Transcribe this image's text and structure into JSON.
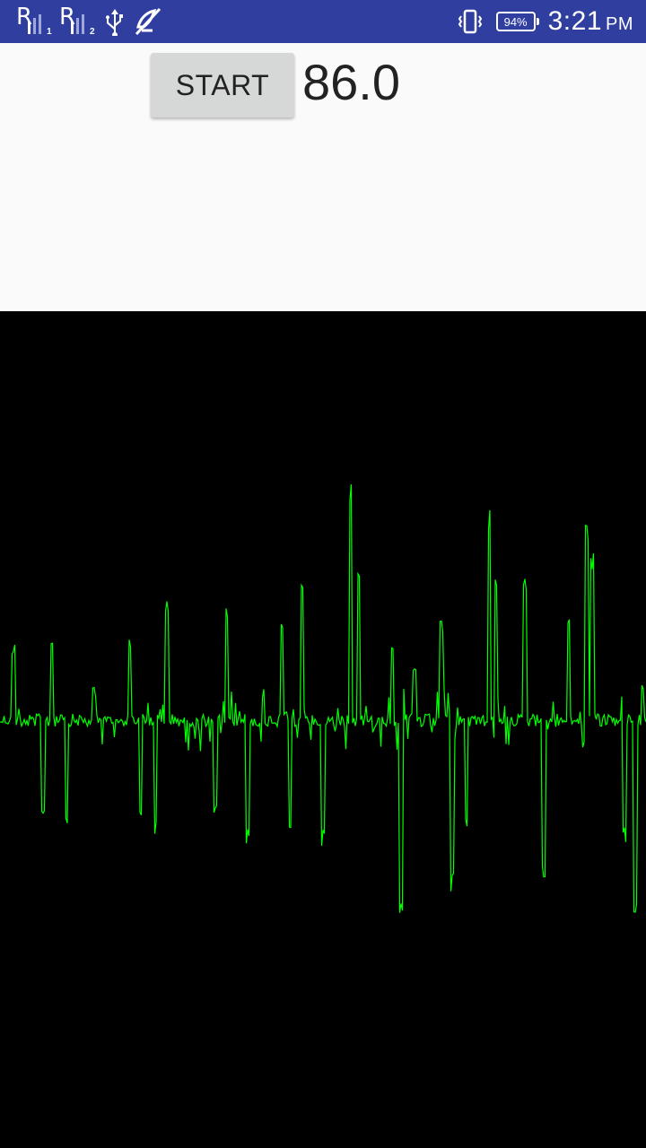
{
  "status_bar": {
    "sim1": {
      "carrier_letter": "R",
      "slot": "1",
      "icon": "signal-strength-icon"
    },
    "sim2": {
      "carrier_letter": "R",
      "slot": "2",
      "icon": "signal-strength-icon"
    },
    "icons": [
      "usb-icon",
      "notification-muted-icon",
      "vibrate-icon"
    ],
    "battery": "94%",
    "time": "3:21",
    "ampm": "PM",
    "bg_color": "#303f9f"
  },
  "controls": {
    "start_label": "START",
    "reading": "86.0"
  },
  "waveform": {
    "line_color": "#00ff00",
    "background": "#000000",
    "icon": "waveform"
  }
}
